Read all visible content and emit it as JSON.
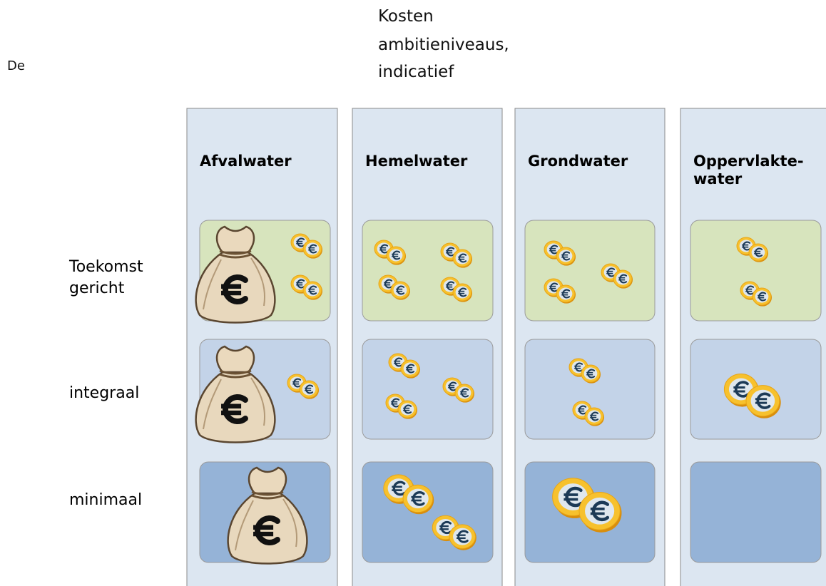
{
  "header": {
    "side_note": "De",
    "title": [
      "Kosten",
      "ambitieniveaus,",
      "indicatief"
    ]
  },
  "columns": [
    {
      "label": [
        "Afvalwater"
      ]
    },
    {
      "label": [
        "Hemelwater"
      ]
    },
    {
      "label": [
        "Grondwater"
      ]
    },
    {
      "label": [
        "Oppervlakte-",
        "water"
      ]
    }
  ],
  "rows": [
    {
      "label": [
        "Toekomst",
        "gericht"
      ]
    },
    {
      "label": [
        "integraal"
      ]
    },
    {
      "label": [
        "minimaal"
      ]
    }
  ]
}
